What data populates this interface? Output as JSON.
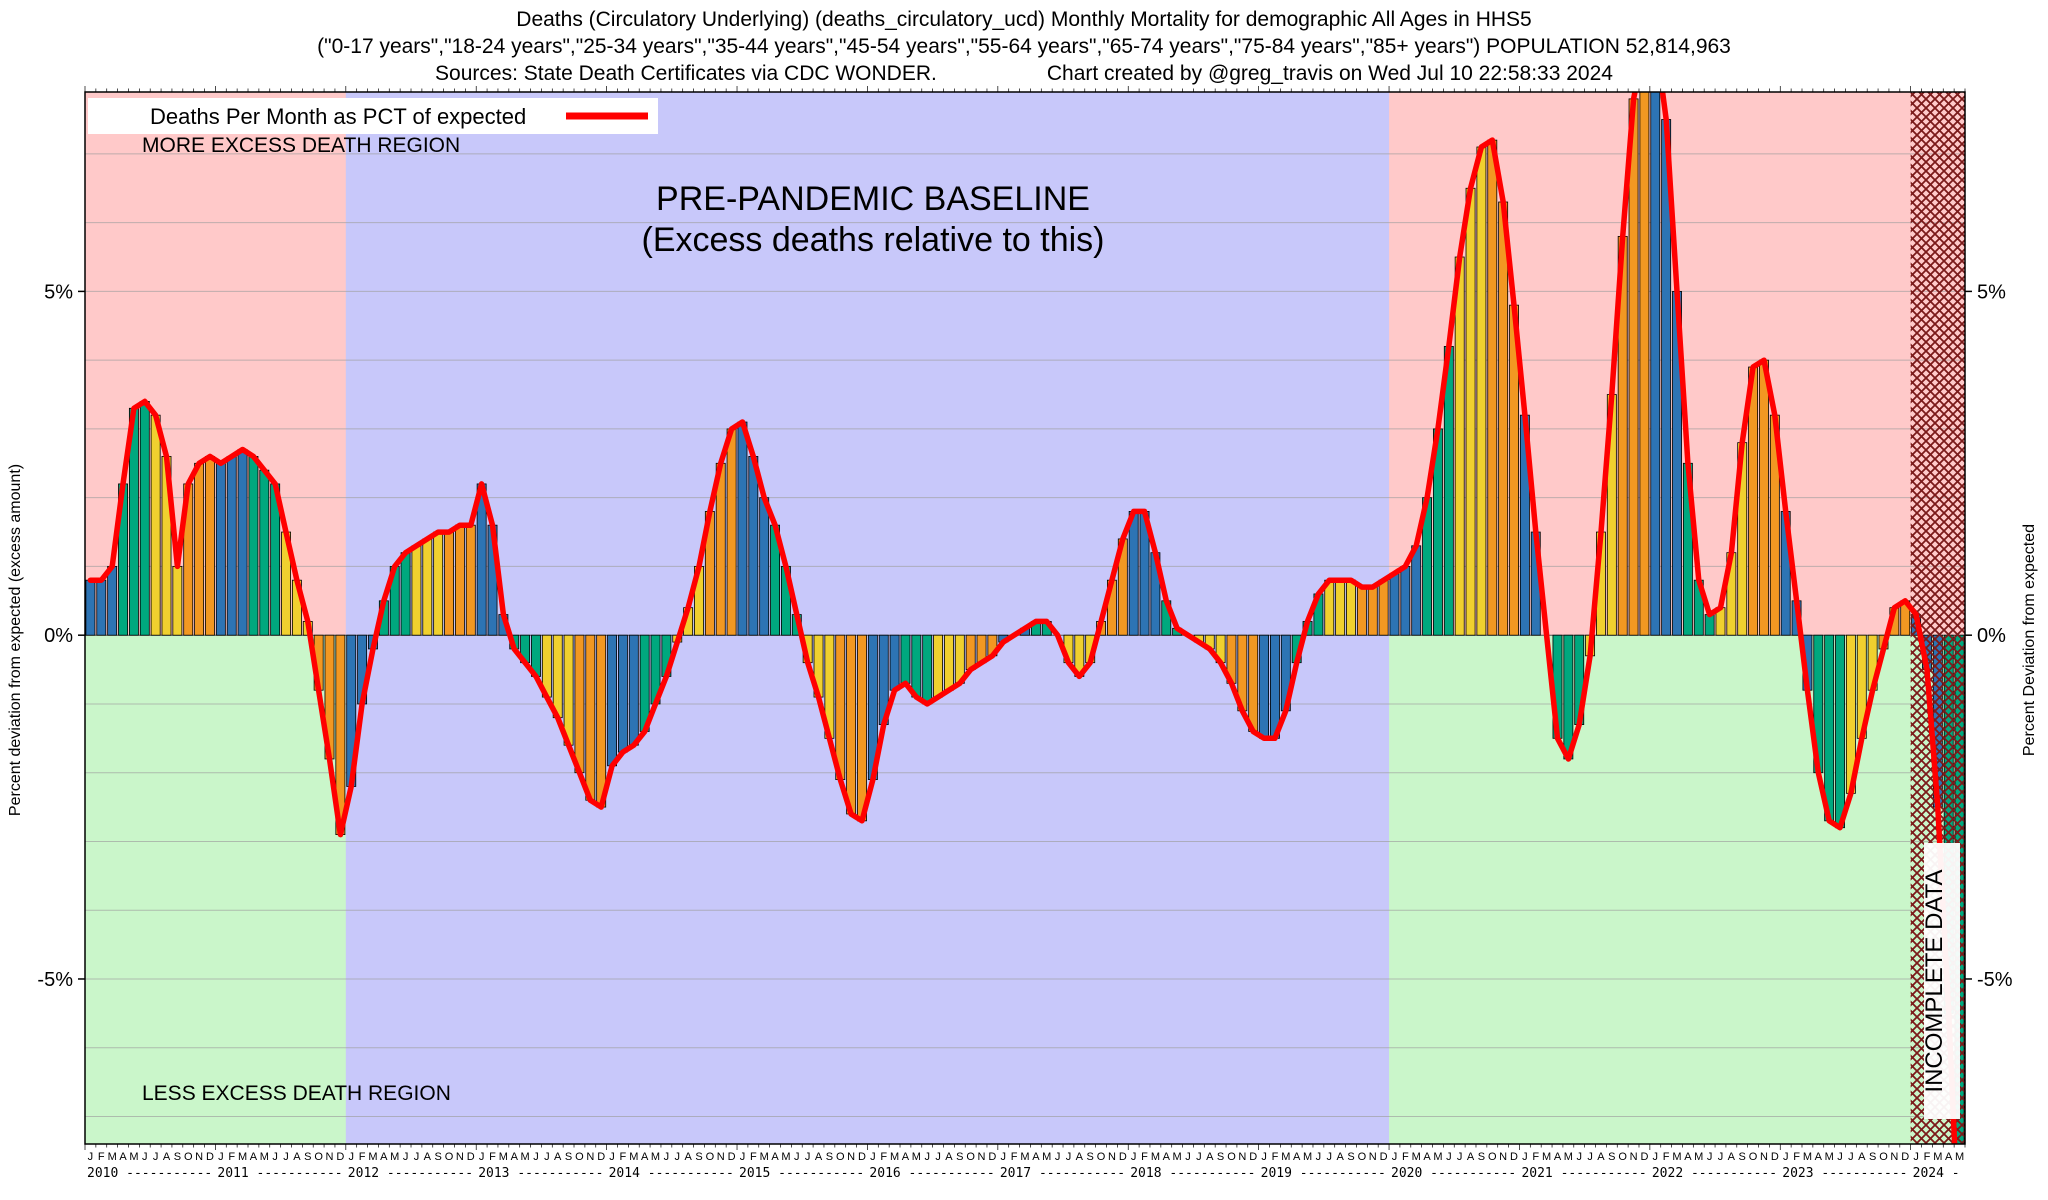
{
  "header": {
    "line1": "Deaths (Circulatory Underlying) (deaths_circulatory_ucd) Monthly Mortality for demographic All Ages in HHS5",
    "line2": "(\"0-17 years\",\"18-24 years\",\"25-34 years\",\"35-44 years\",\"45-54 years\",\"55-64 years\",\"65-74 years\",\"75-84 years\",\"85+ years\") POPULATION 52,814,963",
    "sources": "Sources: State Death Certificates via CDC WONDER.",
    "credit": "Chart created by @greg_travis on Wed Jul 10 22:58:33 2024"
  },
  "legend": {
    "label": "Deaths Per Month as PCT of expected"
  },
  "annotations": {
    "more_excess": "MORE EXCESS DEATH REGION",
    "less_excess": "LESS EXCESS DEATH REGION",
    "baseline_line1": "PRE-PANDEMIC BASELINE",
    "baseline_line2": "(Excess deaths relative to this)",
    "incomplete": "INCOMPLETE DATA"
  },
  "y_axis": {
    "left_title": "Percent deviation from expected (excess amount)",
    "right_title": "Percent Deviation from expected",
    "ticks": [
      {
        "value": 5,
        "label": "5%"
      },
      {
        "value": 0,
        "label": "0%"
      },
      {
        "value": -5,
        "label": "-5%"
      }
    ]
  },
  "chart_data": {
    "type": "bar+line",
    "title": "Deaths Per Month as PCT of expected",
    "unit": "percent deviation from expected",
    "x_start": "2010-01",
    "x_end": "2024-05",
    "month_letters": [
      "J",
      "F",
      "M",
      "A",
      "M",
      "J",
      "J",
      "A",
      "S",
      "O",
      "N",
      "D"
    ],
    "years": [
      2010,
      2011,
      2012,
      2013,
      2014,
      2015,
      2016,
      2017,
      2018,
      2019,
      2020,
      2021,
      2022,
      2023,
      2024
    ],
    "values_pct": [
      0.8,
      0.8,
      1.0,
      2.2,
      3.3,
      3.4,
      3.2,
      2.6,
      1.0,
      2.2,
      2.5,
      2.6,
      2.5,
      2.6,
      2.7,
      2.6,
      2.4,
      2.2,
      1.5,
      0.8,
      0.2,
      -0.8,
      -1.8,
      -2.9,
      -2.2,
      -1.0,
      -0.2,
      0.5,
      1.0,
      1.2,
      1.3,
      1.4,
      1.5,
      1.5,
      1.6,
      1.6,
      2.2,
      1.6,
      0.3,
      -0.2,
      -0.4,
      -0.6,
      -0.9,
      -1.2,
      -1.6,
      -2.0,
      -2.4,
      -2.5,
      -1.9,
      -1.7,
      -1.6,
      -1.4,
      -1.0,
      -0.6,
      -0.1,
      0.4,
      1.0,
      1.8,
      2.5,
      3.0,
      3.1,
      2.6,
      2.0,
      1.6,
      1.0,
      0.3,
      -0.4,
      -0.9,
      -1.5,
      -2.1,
      -2.6,
      -2.7,
      -2.1,
      -1.3,
      -0.8,
      -0.7,
      -0.9,
      -1.0,
      -0.9,
      -0.8,
      -0.7,
      -0.5,
      -0.4,
      -0.3,
      -0.1,
      0.0,
      0.1,
      0.2,
      0.2,
      0.0,
      -0.4,
      -0.6,
      -0.4,
      0.2,
      0.8,
      1.4,
      1.8,
      1.8,
      1.2,
      0.5,
      0.1,
      0.0,
      -0.1,
      -0.2,
      -0.4,
      -0.7,
      -1.1,
      -1.4,
      -1.5,
      -1.5,
      -1.1,
      -0.4,
      0.2,
      0.6,
      0.8,
      0.8,
      0.8,
      0.7,
      0.7,
      0.8,
      0.9,
      1.0,
      1.3,
      2.0,
      3.0,
      4.2,
      5.5,
      6.5,
      7.1,
      7.2,
      6.3,
      4.8,
      3.2,
      1.5,
      0.0,
      -1.5,
      -1.8,
      -1.3,
      -0.3,
      1.5,
      3.5,
      5.8,
      7.8,
      8.6,
      8.7,
      7.5,
      5.0,
      2.5,
      0.8,
      0.3,
      0.4,
      1.2,
      2.8,
      3.9,
      4.0,
      3.2,
      1.8,
      0.5,
      -0.8,
      -2.0,
      -2.7,
      -2.8,
      -2.3,
      -1.5,
      -0.8,
      -0.2,
      0.4,
      0.5,
      0.3,
      -0.5,
      -2.5,
      -5.5,
      -9.0
    ],
    "ylim": [
      -7.4,
      7.9
    ],
    "grid_step": 1,
    "baseline_start_index": 24,
    "baseline_end_index": 119,
    "incomplete_start_index": 168,
    "quarter_colors": [
      "#2d74b4",
      "#00a87e",
      "#f0d02f",
      "#f29822"
    ],
    "line_color": "#ff0000",
    "bg_above_zero": "#ffc9c9",
    "bg_below_zero": "#caf6ca",
    "bg_baseline": "#c8c8fa",
    "hatch_color": "#7b1a1a",
    "legend_position": "top-left",
    "grid": true
  }
}
